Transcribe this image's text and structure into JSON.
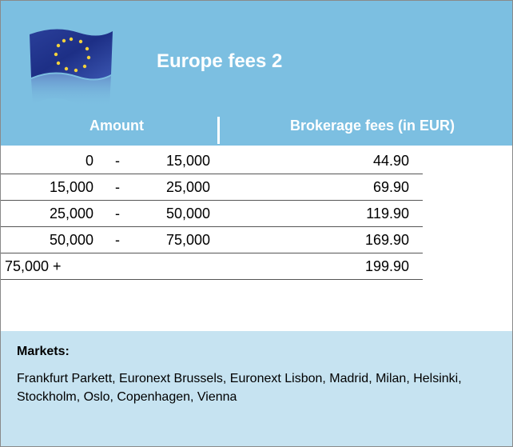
{
  "header": {
    "title": "Europe fees 2",
    "columns": [
      "Amount",
      "Brokerage fees (in EUR)"
    ]
  },
  "table": {
    "rows": [
      {
        "from": "0",
        "dash": "-",
        "to": "15,000",
        "fee": "44.90"
      },
      {
        "from": "15,000",
        "dash": "-",
        "to": "25,000",
        "fee": "69.90"
      },
      {
        "from": "25,000",
        "dash": "-",
        "to": "50,000",
        "fee": "119.90"
      },
      {
        "from": "50,000",
        "dash": "-",
        "to": "75,000",
        "fee": "169.90"
      },
      {
        "from": "75,000 +",
        "fee": "199.90"
      }
    ]
  },
  "markets": {
    "label": "Markets:",
    "text": "Frankfurt Parkett, Euronext Brussels, Euronext Lisbon, Madrid, Milan, Helsinki, Stockholm, Oslo, Copenhagen, Vienna"
  }
}
